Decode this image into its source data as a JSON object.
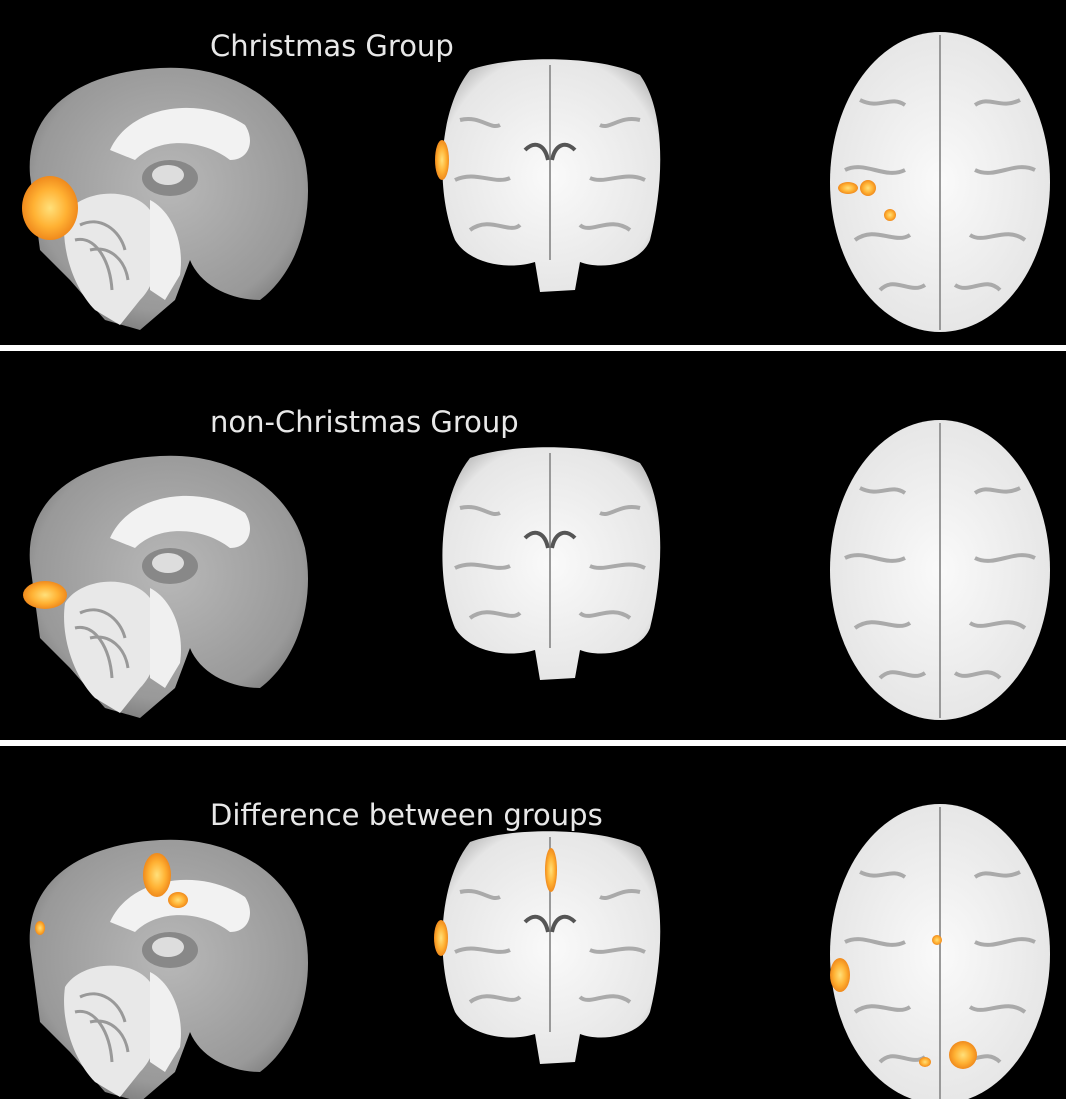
{
  "panels": [
    {
      "title": "Christmas Group"
    },
    {
      "title": "non-Christmas Group"
    },
    {
      "title": "Difference between groups"
    }
  ]
}
